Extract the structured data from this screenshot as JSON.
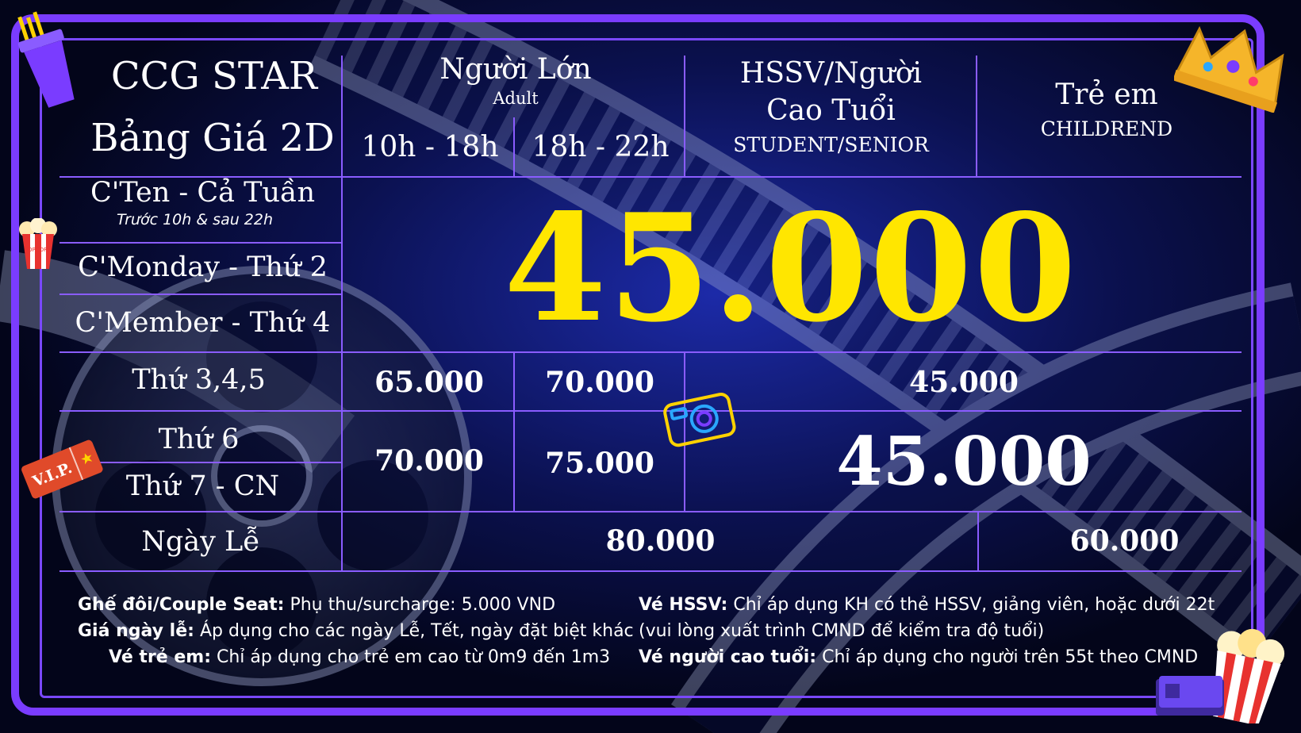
{
  "header": {
    "brand": "CCG STAR",
    "subtitle": "Bảng Giá 2D",
    "adult_vi": "Người Lớn",
    "adult_en": "Adult",
    "slot_1": "10h - 18h",
    "slot_2": "18h - 22h",
    "student_vi_line1": "HSSV/Người",
    "student_vi_line2": "Cao Tuổi",
    "student_en": "STUDENT/SENIOR",
    "child_vi": "Trẻ em",
    "child_en": "CHILDREND"
  },
  "rows": {
    "cten": "C'Ten - Cả Tuần",
    "cten_note": "Trước 10h & sau 22h",
    "cmonday": "C'Monday - Thứ 2",
    "cmember": "C'Member - Thứ 4",
    "thu345": "Thứ 3,4,5",
    "thu6": "Thứ 6",
    "thu7cn": "Thứ 7 - CN",
    "ngayle": "Ngày Lễ"
  },
  "prices": {
    "special_all": "45.000",
    "thu345_slot1": "65.000",
    "thu345_slot2": "70.000",
    "thu345_other": "45.000",
    "weekend_slot1": "70.000",
    "weekend_slot2": "75.000",
    "weekend_other": "45.000",
    "holiday_main": "80.000",
    "holiday_child": "60.000"
  },
  "notes": {
    "couple_label": "Ghế đôi/Couple Seat:",
    "couple_text": " Phụ thu/surcharge: 5.000 VND",
    "holiday_label": "Giá ngày lễ:",
    "holiday_text": " Áp dụng cho các ngày Lễ, Tết, ngày đặt biệt khác",
    "child_label": "Vé trẻ em:",
    "child_text": " Chỉ áp dụng cho trẻ em  cao từ 0m9 đến 1m3",
    "student_label": "Vé HSSV:",
    "student_text": " Chỉ áp dụng KH có thẻ HSSV, giảng viên, hoặc dưới 22t",
    "student_text2": "(vui lòng xuất trình CMND để kiểm tra độ tuổi)",
    "senior_label": "Vé người cao tuổi:",
    "senior_text": " Chỉ áp dụng cho người trên 55t theo CMND"
  },
  "decorations": {
    "popcorn_label": "POPCORN",
    "vip_label": "V.I.P."
  },
  "colors": {
    "frame": "#7a3cff",
    "highlight": "#ffe600",
    "background": "#05071a"
  }
}
